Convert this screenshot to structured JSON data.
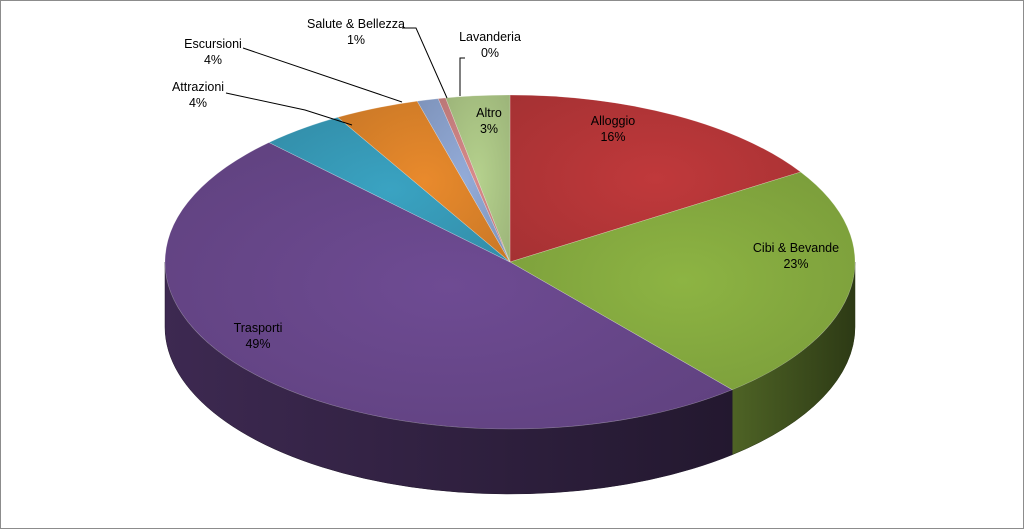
{
  "chart_data": {
    "type": "pie",
    "title": "",
    "slices": [
      {
        "name": "Alloggio",
        "value": 16,
        "label": "16%",
        "color": "#C0393B"
      },
      {
        "name": "Cibi & Bevande",
        "value": 23,
        "label": "23%",
        "color": "#8DB443"
      },
      {
        "name": "Trasporti",
        "value": 49,
        "label": "49%",
        "color": "#6E4B93"
      },
      {
        "name": "Attrazioni",
        "value": 4,
        "label": "4%",
        "color": "#3AA3C2"
      },
      {
        "name": "Escursioni",
        "value": 4,
        "label": "4%",
        "color": "#E98A2C"
      },
      {
        "name": "Salute & Bellezza",
        "value": 1,
        "label": "1%",
        "color": "#93ABD8"
      },
      {
        "name": "Lavanderia",
        "value": 0,
        "label": "0%",
        "color": "#D88A8A"
      },
      {
        "name": "Altro",
        "value": 3,
        "label": "3%",
        "color": "#B5D18D"
      }
    ],
    "legend": "none",
    "style": "3d-pie"
  }
}
